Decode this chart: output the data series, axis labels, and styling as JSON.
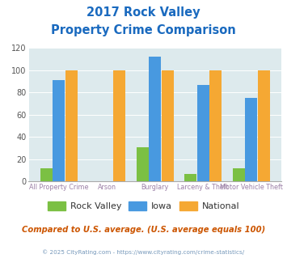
{
  "title_line1": "2017 Rock Valley",
  "title_line2": "Property Crime Comparison",
  "categories_top": [
    "",
    "Arson",
    "",
    "Larceny & Theft",
    ""
  ],
  "categories_bot": [
    "All Property Crime",
    "",
    "Burglary",
    "",
    "Motor Vehicle Theft"
  ],
  "rock_valley": [
    12,
    0,
    31,
    7,
    12
  ],
  "iowa": [
    91,
    0,
    112,
    87,
    75
  ],
  "national": [
    100,
    100,
    100,
    100,
    100
  ],
  "colors": {
    "rock_valley": "#7bc043",
    "iowa": "#4899e0",
    "national": "#f5a833"
  },
  "ylim": [
    0,
    120
  ],
  "yticks": [
    0,
    20,
    40,
    60,
    80,
    100,
    120
  ],
  "background_color": "#ddeaed",
  "title_color": "#1a6abf",
  "xlabel_color": "#9b7fa6",
  "footer_text": "Compared to U.S. average. (U.S. average equals 100)",
  "copyright_text": "© 2025 CityRating.com - https://www.cityrating.com/crime-statistics/",
  "footer_color": "#cc5500",
  "copyright_color": "#7799bb",
  "legend_labels": [
    "Rock Valley",
    "Iowa",
    "National"
  ]
}
